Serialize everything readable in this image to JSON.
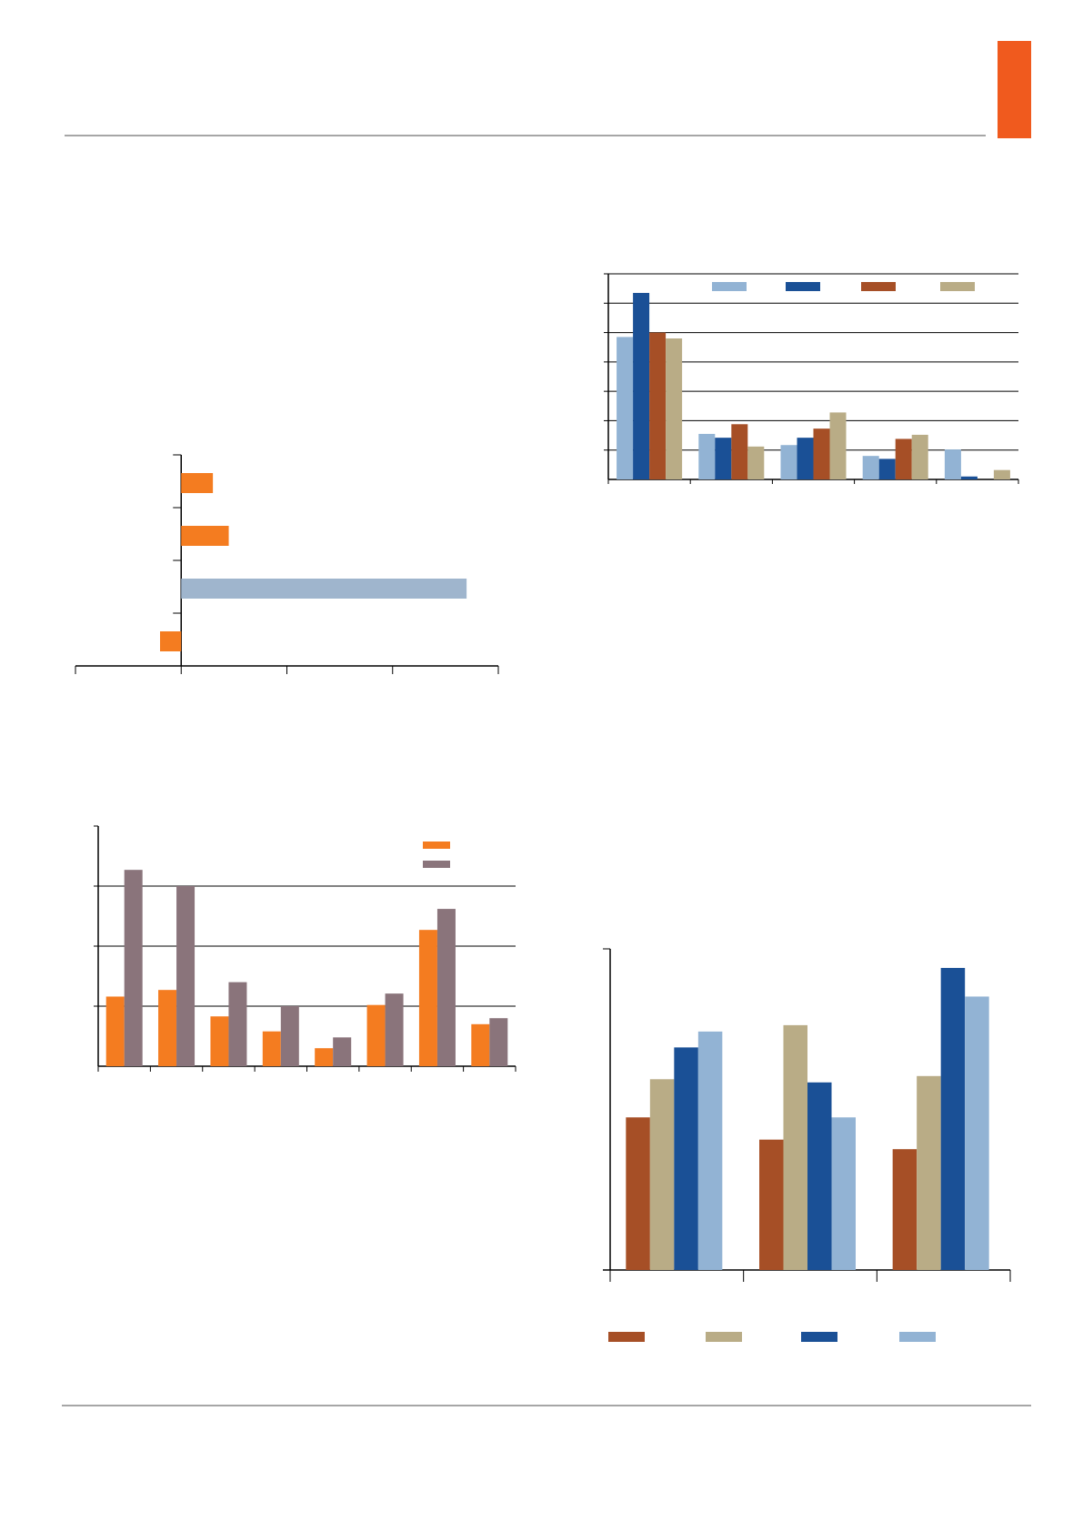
{
  "page": {
    "accent_color": "#f05a1e",
    "rule_color": "#a6a6a6"
  },
  "colors": {
    "orange": "#f47c20",
    "light_blue_grey": "#9fb5cd",
    "mauve": "#8a747b",
    "light_blue": "#92b3d4",
    "dark_blue": "#1a5096",
    "rust": "#a64f26",
    "tan": "#b9ac86"
  },
  "chart_data": [
    {
      "id": "top-right-grouped-bar",
      "type": "bar",
      "categories": [
        "",
        "",
        "",
        "",
        ""
      ],
      "series": [
        {
          "color": "#92b3d4",
          "values": [
            48.5,
            15.5,
            11.7,
            8,
            10.2
          ]
        },
        {
          "color": "#1a5096",
          "values": [
            63.5,
            14.2,
            14.2,
            7,
            1
          ]
        },
        {
          "color": "#a64f26",
          "values": [
            50,
            18.8,
            17.3,
            13.8,
            0
          ]
        },
        {
          "color": "#b9ac86",
          "values": [
            48,
            11.2,
            22.8,
            15.2,
            3.2
          ]
        }
      ],
      "ylim": [
        0,
        70
      ],
      "y_gridlines": [
        10,
        20,
        30,
        40,
        50,
        60,
        70
      ],
      "grid": true,
      "legend": "top"
    },
    {
      "id": "left-horizontal-bar",
      "type": "bar",
      "orientation": "horizontal",
      "categories": [
        "",
        "",
        "",
        ""
      ],
      "values": [
        1.5,
        2.25,
        13.5,
        -1
      ],
      "colors": [
        "#f47c20",
        "#f47c20",
        "#9fb5cd",
        "#f47c20"
      ],
      "xlim": [
        -5,
        15
      ],
      "x_ticks": [
        -5,
        0,
        5,
        10,
        15
      ],
      "grid": false
    },
    {
      "id": "left-grouped-bar",
      "type": "bar",
      "categories": [
        "",
        "",
        "",
        "",
        "",
        "",
        "",
        ""
      ],
      "series": [
        {
          "color": "#f47c20",
          "values": [
            11.6,
            12.7,
            8.3,
            5.8,
            3,
            10.2,
            22.7,
            7
          ]
        },
        {
          "color": "#8a747b",
          "values": [
            32.7,
            30,
            14,
            10,
            4.8,
            12.1,
            26.2,
            8
          ]
        }
      ],
      "ylim": [
        0,
        40
      ],
      "y_gridlines": [
        10,
        20,
        30
      ],
      "grid": true,
      "legend": "top-right"
    },
    {
      "id": "bottom-right-grouped-bar",
      "type": "bar",
      "categories": [
        "",
        "",
        ""
      ],
      "series": [
        {
          "color": "#a64f26",
          "values": [
            48,
            41,
            38
          ]
        },
        {
          "color": "#b9ac86",
          "values": [
            60,
            77,
            61
          ]
        },
        {
          "color": "#1a5096",
          "values": [
            70,
            59,
            95
          ]
        },
        {
          "color": "#92b3d4",
          "values": [
            75,
            48,
            86
          ]
        }
      ],
      "ylim": [
        0,
        101
      ],
      "grid": false,
      "legend": "bottom"
    }
  ]
}
